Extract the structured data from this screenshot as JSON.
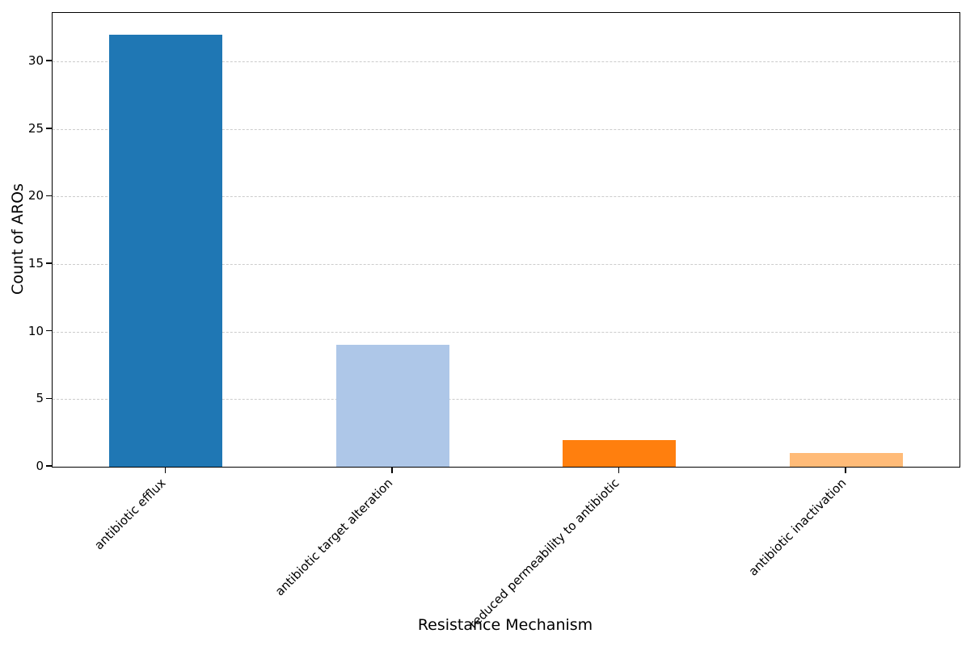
{
  "chart_data": {
    "type": "bar",
    "title": "",
    "xlabel": "Resistance Mechanism",
    "ylabel": "Count of AROs",
    "categories": [
      "antibiotic efflux",
      "antibiotic target alteration",
      "reduced permeability to antibiotic",
      "antibiotic inactivation"
    ],
    "values": [
      32,
      9,
      2,
      1
    ],
    "bar_colors": [
      "#1f77b4",
      "#aec7e8",
      "#ff7f0e",
      "#ffbb78"
    ],
    "ylim": [
      0,
      33.6
    ],
    "yticks": [
      0,
      5,
      10,
      15,
      20,
      25,
      30
    ],
    "xtick_rotation_deg": 45,
    "grid": "horizontal-dashed",
    "grid_color": "#cccccc",
    "axis_color": "#000000",
    "background_color": "#ffffff",
    "legend": "none"
  }
}
